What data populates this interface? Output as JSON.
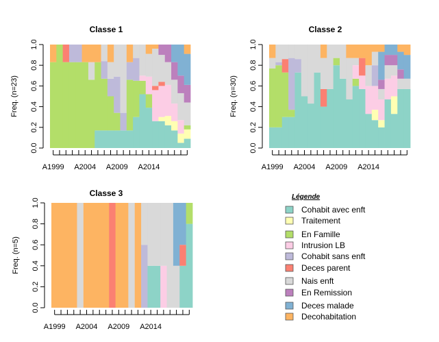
{
  "colors": {
    "Cohabit avec enft": "#8DD3C7",
    "Traitement": "#FFFFB3",
    "En Famille": "#B3DE69",
    "Intrusion LB": "#FCCDE5",
    "Cohabit sans enft": "#BEBADA",
    "Deces parent": "#FB8072",
    "Nais enft": "#D9D9D9",
    "En Remission": "#BC80BD",
    "Deces malade": "#80B1D3",
    "Decohabitation": "#FDB462"
  },
  "legend": {
    "title": "Légende",
    "items": [
      "Cohabit avec enft",
      "Traitement",
      "En Famille",
      "Intrusion LB",
      "Cohabit sans enft",
      "Deces parent",
      "Nais enft",
      "En Remission",
      "Deces malade",
      "Decohabitation"
    ]
  },
  "chart_data": [
    {
      "type": "bar",
      "stacked": true,
      "title": "Classe 1",
      "ylabel": "Freq.  (n=23)",
      "ylim": [
        0,
        1
      ],
      "yticks": [
        "0.0",
        "0.2",
        "0.4",
        "0.6",
        "0.8",
        "1.0"
      ],
      "x_tick_labels": [
        "A1999",
        "A2004",
        "A2009",
        "A2014"
      ],
      "categories": [
        "1999",
        "2000",
        "2001",
        "2002",
        "2003",
        "2004",
        "2005",
        "2006",
        "2007",
        "2008",
        "2009",
        "2010",
        "2011",
        "2012",
        "2013",
        "2014",
        "2015",
        "2016",
        "2017",
        "2018",
        "2019",
        "2020"
      ],
      "stack_order": [
        "Cohabit avec enft",
        "Traitement",
        "En Famille",
        "Intrusion LB",
        "Cohabit sans enft",
        "Deces parent",
        "Nais enft",
        "En Remission",
        "Deces malade",
        "Decohabitation"
      ],
      "values": [
        {
          "Decohabitation": 0.17,
          "En Famille": 0.83
        },
        {
          "En Famille": 1.0
        },
        {
          "Deces parent": 0.17,
          "En Famille": 0.83
        },
        {
          "Cohabit sans enft": 0.17,
          "En Famille": 0.83
        },
        {
          "Cohabit sans enft": 0.17,
          "En Famille": 0.83
        },
        {
          "Decohabitation": 0.17,
          "En Famille": 0.83
        },
        {
          "Decohabitation": 0.17,
          "En Famille": 0.66,
          "Nais enft": 0.17
        },
        {
          "Cohabit avec enft": 0.17,
          "Decohabitation": 0.17,
          "En Famille": 0.66
        },
        {
          "Cohabit avec enft": 0.17,
          "Cohabit sans enft": 0.17,
          "En Famille": 0.5,
          "Nais enft": 0.16
        },
        {
          "Cohabit avec enft": 0.17,
          "Cohabit sans enft": 0.17,
          "Decohabitation": 0.17,
          "En Famille": 0.33,
          "Nais enft": 0.16
        },
        {
          "Cohabit avec enft": 0.17,
          "Cohabit sans enft": 0.35,
          "En Famille": 0.17,
          "Nais enft": 0.31
        },
        {
          "Cohabit avec enft": 0.17,
          "Cohabit sans enft": 0.17,
          "Nais enft": 0.66
        },
        {
          "Cohabit avec enft": 0.17,
          "Cohabit sans enft": 0.17,
          "Decohabitation": 0.17,
          "En Famille": 0.49
        },
        {
          "Cohabit avec enft": 0.3,
          "Cohabit sans enft": 0.22,
          "En Famille": 0.35,
          "Nais enft": 0.13
        },
        {
          "Cohabit avec enft": 0.52,
          "En Famille": 0.13,
          "Intrusion LB": 0.05,
          "Nais enft": 0.3
        },
        {
          "Cohabit avec enft": 0.39,
          "Decohabitation": 0.09,
          "En Famille": 0.13,
          "Intrusion LB": 0.17,
          "Nais enft": 0.22
        },
        {
          "Cohabit avec enft": 0.26,
          "Deces parent": 0.04,
          "Decohabitation": 0.04,
          "Intrusion LB": 0.3,
          "Nais enft": 0.36
        },
        {
          "Cohabit avec enft": 0.26,
          "Traitement": 0.04,
          "Deces parent": 0.04,
          "Intrusion LB": 0.3,
          "Nais enft": 0.26,
          "En Remission": 0.1
        },
        {
          "Cohabit avec enft": 0.22,
          "Traitement": 0.09,
          "Intrusion LB": 0.3,
          "Nais enft": 0.22,
          "En Remission": 0.17
        },
        {
          "Cohabit avec enft": 0.17,
          "Traitement": 0.09,
          "Deces malade": 0.17,
          "Intrusion LB": 0.17,
          "Nais enft": 0.23,
          "En Remission": 0.17
        },
        {
          "Cohabit avec enft": 0.05,
          "Traitement": 0.09,
          "Deces malade": 0.3,
          "Intrusion LB": 0.13,
          "Nais enft": 0.26,
          "En Remission": 0.17
        },
        {
          "Cohabit avec enft": 0.09,
          "Traitement": 0.09,
          "Deces malade": 0.3,
          "Decohabitation": 0.09,
          "En Famille": 0.04,
          "Nais enft": 0.22,
          "En Remission": 0.17
        }
      ]
    },
    {
      "type": "bar",
      "stacked": true,
      "title": "Classe 2",
      "ylabel": "Freq.  (n=30)",
      "ylim": [
        0,
        1
      ],
      "yticks": [
        "0.0",
        "0.2",
        "0.4",
        "0.6",
        "0.8",
        "1.0"
      ],
      "x_tick_labels": [
        "A1999",
        "A2004",
        "A2009",
        "A2014"
      ],
      "categories": [
        "1999",
        "2000",
        "2001",
        "2002",
        "2003",
        "2004",
        "2005",
        "2006",
        "2007",
        "2008",
        "2009",
        "2010",
        "2011",
        "2012",
        "2013",
        "2014",
        "2015",
        "2016",
        "2017",
        "2018",
        "2019",
        "2020"
      ],
      "stack_order": [
        "Cohabit avec enft",
        "Traitement",
        "En Famille",
        "Intrusion LB",
        "Cohabit sans enft",
        "Deces parent",
        "Nais enft",
        "En Remission",
        "Deces malade",
        "Decohabitation"
      ],
      "values": [
        {
          "Cohabit avec enft": 0.2,
          "Decohabitation": 0.13,
          "En Famille": 0.57,
          "Nais enft": 0.1
        },
        {
          "Cohabit avec enft": 0.2,
          "Cohabit sans enft": 0.03,
          "En Famille": 0.6,
          "Nais enft": 0.17
        },
        {
          "Cohabit avec enft": 0.3,
          "Deces parent": 0.13,
          "En Famille": 0.43,
          "Nais enft": 0.14
        },
        {
          "Cohabit avec enft": 0.3,
          "Cohabit sans enft": 0.5,
          "En Famille": 0.07,
          "Nais enft": 0.13
        },
        {
          "Cohabit avec enft": 0.73,
          "Cohabit sans enft": 0.13,
          "Nais enft": 0.14
        },
        {
          "Cohabit avec enft": 0.5,
          "Nais enft": 0.5
        },
        {
          "Cohabit avec enft": 0.43,
          "Nais enft": 0.57
        },
        {
          "Cohabit avec enft": 0.73,
          "Nais enft": 0.27
        },
        {
          "Cohabit avec enft": 0.4,
          "Deces parent": 0.17,
          "Decohabitation": 0.13,
          "Nais enft": 0.3
        },
        {
          "Cohabit avec enft": 0.57,
          "Nais enft": 0.43
        },
        {
          "Cohabit avec enft": 0.8,
          "En Famille": 0.07,
          "Nais enft": 0.13
        },
        {
          "Cohabit avec enft": 0.67,
          "Nais enft": 0.33
        },
        {
          "Cohabit avec enft": 0.47,
          "Decohabitation": 0.13,
          "Nais enft": 0.4
        },
        {
          "Cohabit avec enft": 0.6,
          "Intrusion LB": 0.13,
          "Decohabitation": 0.13,
          "En Famille": 0.07,
          "Nais enft": 0.07
        },
        {
          "Cohabit avec enft": 0.57,
          "Deces parent": 0.17,
          "Intrusion LB": 0.13,
          "Decohabitation": 0.13
        },
        {
          "Cohabit avec enft": 0.33,
          "Decohabitation": 0.2,
          "Intrusion LB": 0.27,
          "Nais enft": 0.2
        },
        {
          "Cohabit avec enft": 0.27,
          "Traitement": 0.1,
          "Cohabit sans enft": 0.2,
          "Decohabitation": 0.07,
          "Intrusion LB": 0.23,
          "Nais enft": 0.13
        },
        {
          "Cohabit avec enft": 0.2,
          "Traitement": 0.07,
          "Deces malade": 0.27,
          "Decohabitation": 0.07,
          "Intrusion LB": 0.2,
          "Nais enft": 0.1,
          "En Remission": 0.09
        },
        {
          "Cohabit avec enft": 0.47,
          "Deces malade": 0.1,
          "Intrusion LB": 0.2,
          "Nais enft": 0.13,
          "En Remission": 0.1
        },
        {
          "Cohabit avec enft": 0.33,
          "Traitement": 0.17,
          "Deces malade": 0.1,
          "Intrusion LB": 0.2,
          "Nais enft": 0.1,
          "En Remission": 0.1
        },
        {
          "Cohabit avec enft": 0.57,
          "Deces malade": 0.17,
          "Decohabitation": 0.07,
          "Nais enft": 0.1,
          "En Remission": 0.09
        },
        {
          "Cohabit avec enft": 0.57,
          "Deces malade": 0.23,
          "Decohabitation": 0.1,
          "Nais enft": 0.1
        }
      ]
    },
    {
      "type": "bar",
      "stacked": true,
      "title": "Classe 3",
      "ylabel": "Freq.  (n=5)",
      "ylim": [
        0,
        1
      ],
      "yticks": [
        "0.0",
        "0.2",
        "0.4",
        "0.6",
        "0.8",
        "1.0"
      ],
      "x_tick_labels": [
        "A1999",
        "A2004",
        "A2009",
        "A2014"
      ],
      "categories": [
        "1999",
        "2000",
        "2001",
        "2002",
        "2003",
        "2004",
        "2005",
        "2006",
        "2007",
        "2008",
        "2009",
        "2010",
        "2011",
        "2012",
        "2013",
        "2014",
        "2015",
        "2016",
        "2017",
        "2018",
        "2019",
        "2020"
      ],
      "stack_order": [
        "Cohabit avec enft",
        "Traitement",
        "En Famille",
        "Intrusion LB",
        "Cohabit sans enft",
        "Deces parent",
        "Nais enft",
        "En Remission",
        "Deces malade",
        "Decohabitation"
      ],
      "values": [
        {
          "Decohabitation": 1.0
        },
        {
          "Decohabitation": 1.0
        },
        {
          "Decohabitation": 1.0
        },
        {
          "Decohabitation": 1.0
        },
        {
          "Nais enft": 1.0
        },
        {
          "Decohabitation": 1.0
        },
        {
          "Decohabitation": 1.0
        },
        {
          "Decohabitation": 1.0
        },
        {
          "Decohabitation": 1.0
        },
        {
          "Deces parent": 1.0
        },
        {
          "Decohabitation": 1.0
        },
        {
          "Decohabitation": 1.0
        },
        {
          "Nais enft": 1.0
        },
        {
          "Decohabitation": 1.0
        },
        {
          "Cohabit sans enft": 0.6,
          "Nais enft": 0.4
        },
        {
          "Cohabit avec enft": 0.4,
          "Nais enft": 0.6
        },
        {
          "Cohabit avec enft": 0.4,
          "Nais enft": 0.6
        },
        {
          "Intrusion LB": 0.4,
          "Nais enft": 0.6
        },
        {
          "Nais enft": 1.0
        },
        {
          "Deces malade": 0.6,
          "Nais enft": 0.4
        },
        {
          "Cohabit avec enft": 0.4,
          "Deces parent": 0.2,
          "Deces malade": 0.4
        },
        {
          "Cohabit avec enft": 0.8,
          "En Famille": 0.2
        }
      ]
    }
  ]
}
